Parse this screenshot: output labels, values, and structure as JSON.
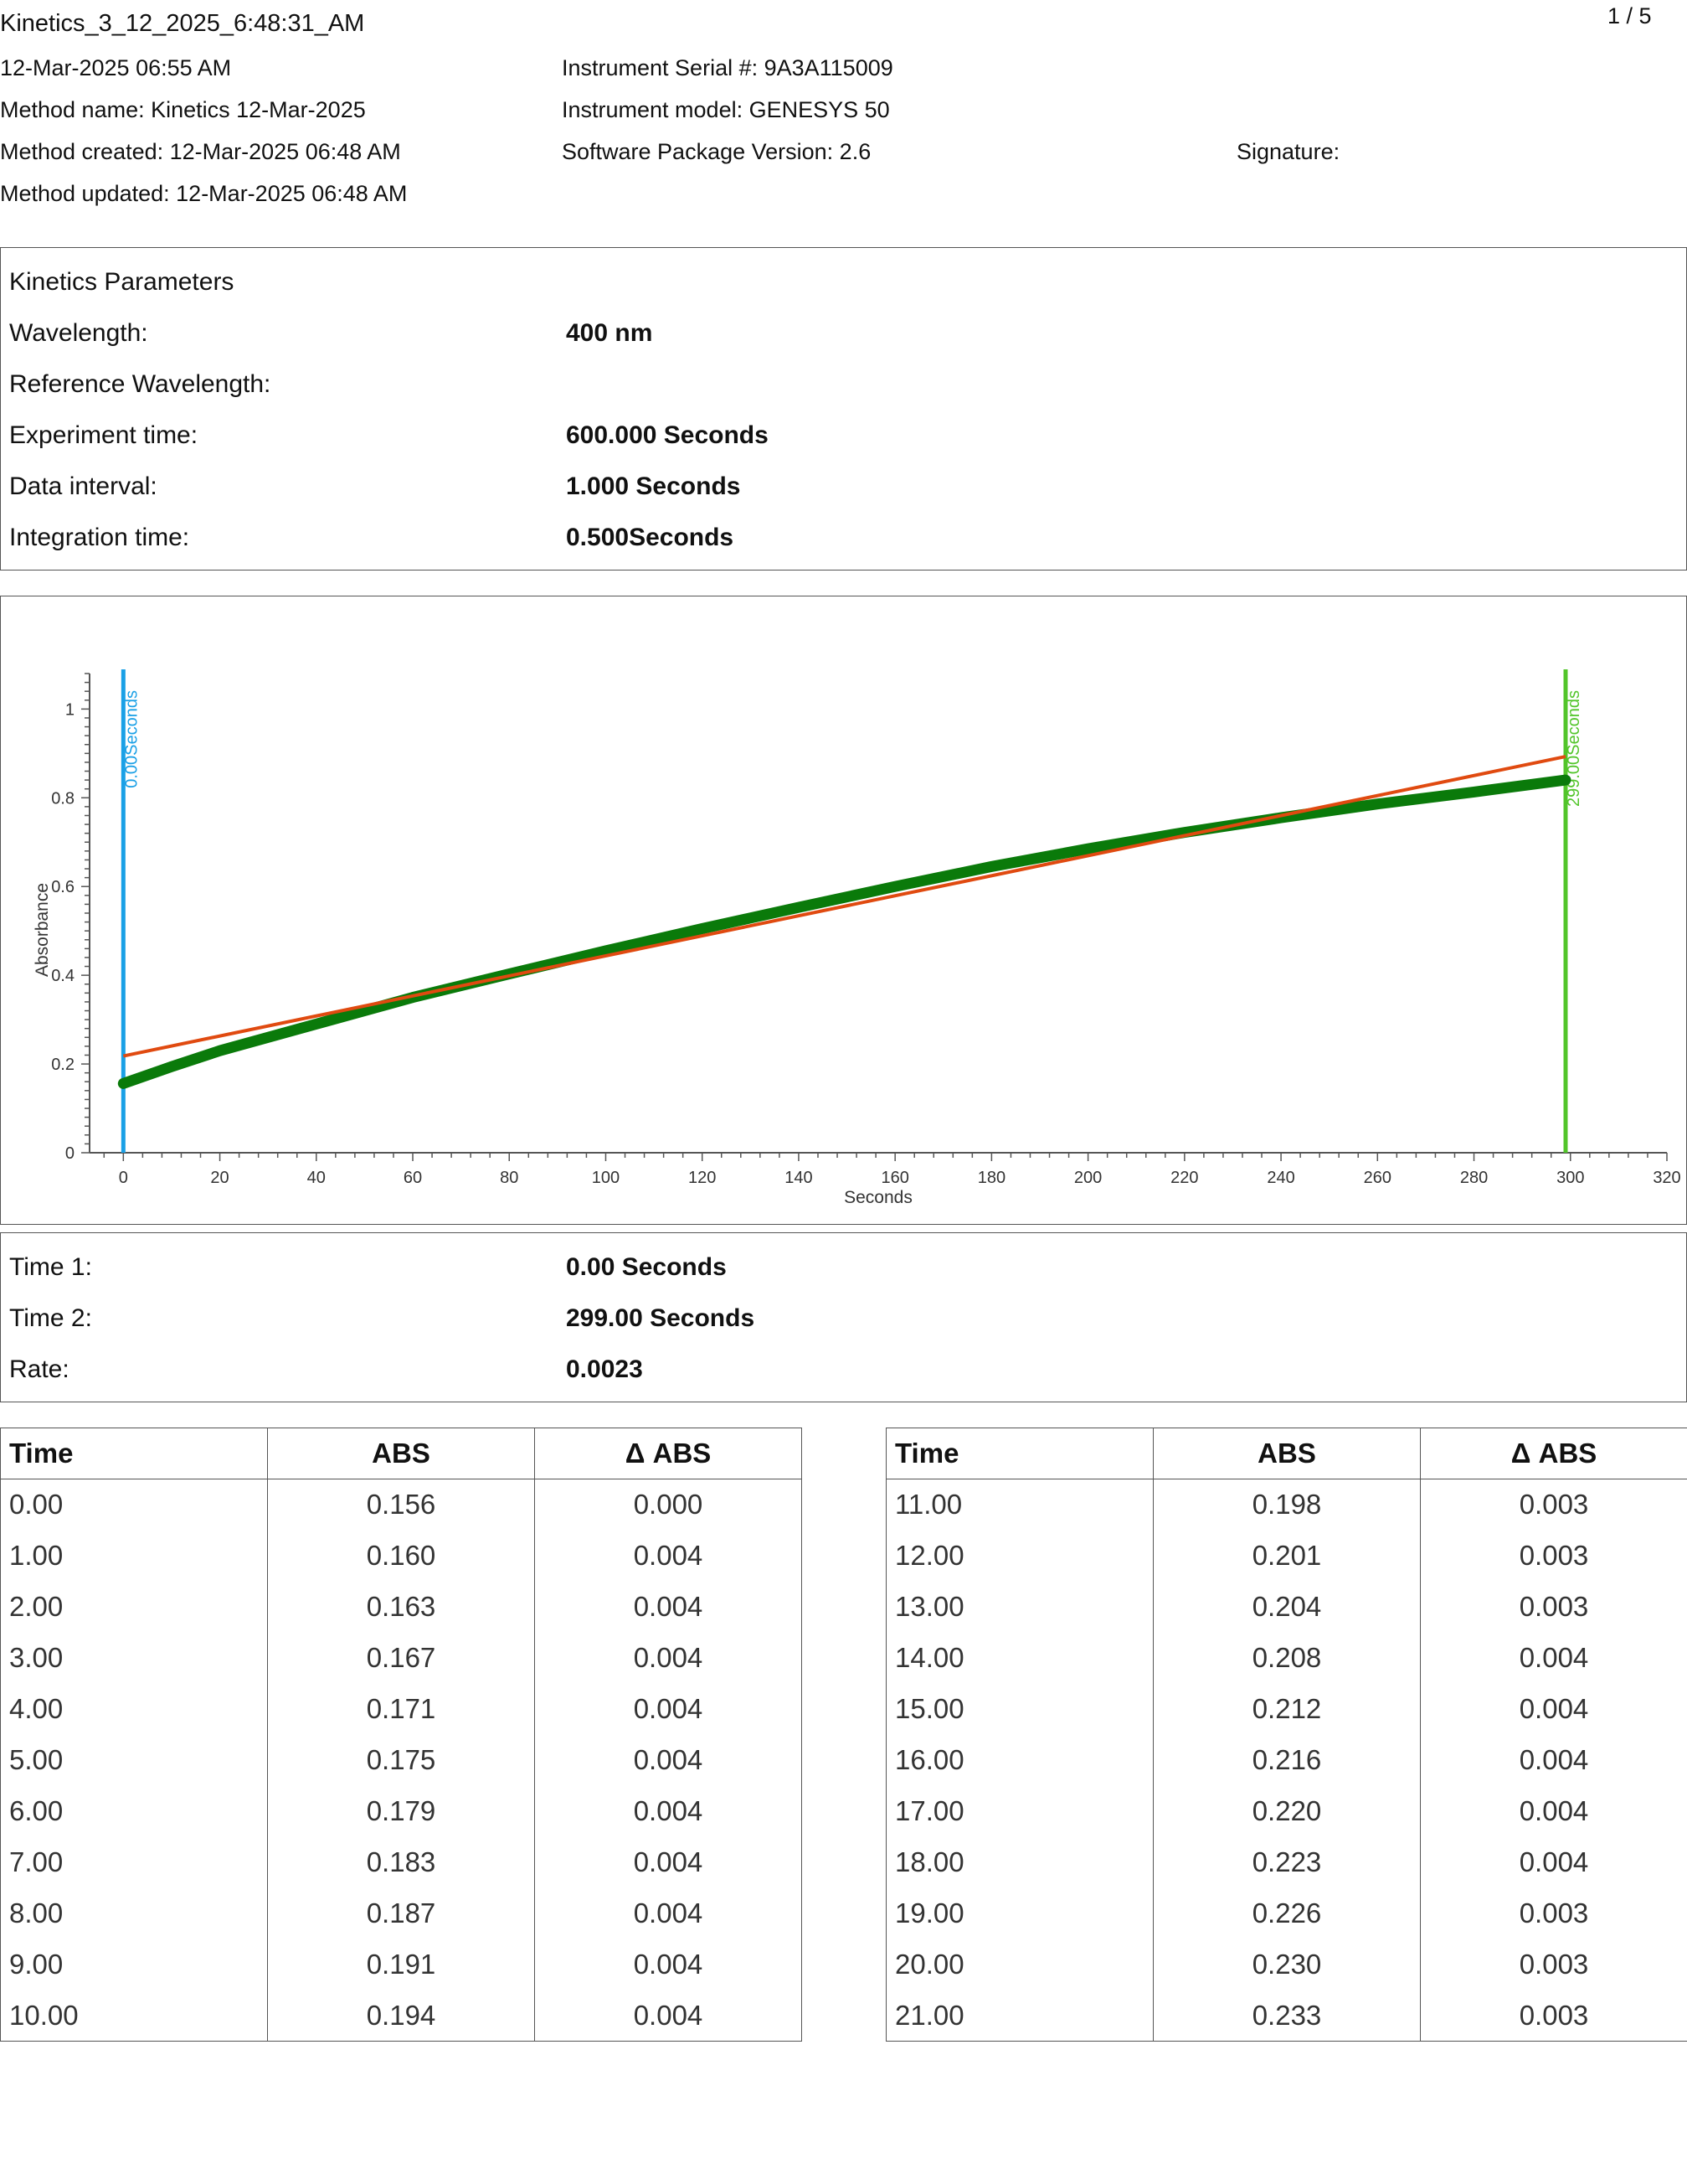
{
  "header": {
    "title": "Kinetics_3_12_2025_6:48:31_AM",
    "page": "1 / 5",
    "date": "12-Mar-2025 06:55 AM",
    "method_name": "Method name: Kinetics 12-Mar-2025",
    "method_created": "Method created: 12-Mar-2025 06:48 AM",
    "method_updated": "Method updated: 12-Mar-2025 06:48 AM",
    "serial": "Instrument Serial #: 9A3A115009",
    "model": "Instrument model: GENESYS 50",
    "software": "Software Package Version: 2.6",
    "signature": "Signature:"
  },
  "params": {
    "heading": "Kinetics Parameters",
    "rows": [
      {
        "label": "Wavelength:",
        "value": "400 nm"
      },
      {
        "label": "Reference Wavelength:",
        "value": ""
      },
      {
        "label": "Experiment time:",
        "value": "600.000 Seconds"
      },
      {
        "label": "Data interval:",
        "value": "1.000 Seconds"
      },
      {
        "label": "Integration time:",
        "value": "0.500Seconds"
      }
    ]
  },
  "chart_data": {
    "type": "scatter",
    "xlabel": "Seconds",
    "ylabel": "Absorbance",
    "xlim": [
      -7,
      320
    ],
    "ylim": [
      0,
      1.08
    ],
    "xticks": [
      0,
      20,
      40,
      60,
      80,
      100,
      120,
      140,
      160,
      180,
      200,
      220,
      240,
      260,
      280,
      300,
      320
    ],
    "yticks": [
      0,
      0.2,
      0.4,
      0.6,
      0.8,
      1
    ],
    "ytick_labels": [
      "0",
      "0.2",
      "0.4",
      "0.6",
      "0.8",
      "1"
    ],
    "series": [
      {
        "points": [
          [
            0,
            0.156
          ],
          [
            10,
            0.194
          ],
          [
            20,
            0.23
          ],
          [
            40,
            0.29
          ],
          [
            60,
            0.35
          ],
          [
            80,
            0.403
          ],
          [
            100,
            0.455
          ],
          [
            120,
            0.505
          ],
          [
            140,
            0.553
          ],
          [
            160,
            0.6
          ],
          [
            180,
            0.645
          ],
          [
            200,
            0.685
          ],
          [
            220,
            0.722
          ],
          [
            240,
            0.755
          ],
          [
            260,
            0.786
          ],
          [
            280,
            0.813
          ],
          [
            299,
            0.84
          ]
        ],
        "color": "#0a7a0a"
      }
    ],
    "fit_line": {
      "x": [
        0,
        299
      ],
      "y": [
        0.218,
        0.893
      ],
      "color": "#e04a10"
    },
    "markers": [
      {
        "x": 0,
        "label": "0.00Seconds",
        "color": "#1aa0e6"
      },
      {
        "x": 299,
        "label": "299.00Seconds",
        "color": "#52c52a"
      }
    ]
  },
  "results": {
    "rows": [
      {
        "label": "Time 1:",
        "value": "0.00 Seconds"
      },
      {
        "label": "Time 2:",
        "value": "299.00 Seconds"
      },
      {
        "label": "Rate:",
        "value": "0.0023"
      }
    ]
  },
  "table": {
    "headers": [
      "Time",
      "ABS",
      "Δ ABS"
    ],
    "left": [
      [
        "0.00",
        "0.156",
        "0.000"
      ],
      [
        "1.00",
        "0.160",
        "0.004"
      ],
      [
        "2.00",
        "0.163",
        "0.004"
      ],
      [
        "3.00",
        "0.167",
        "0.004"
      ],
      [
        "4.00",
        "0.171",
        "0.004"
      ],
      [
        "5.00",
        "0.175",
        "0.004"
      ],
      [
        "6.00",
        "0.179",
        "0.004"
      ],
      [
        "7.00",
        "0.183",
        "0.004"
      ],
      [
        "8.00",
        "0.187",
        "0.004"
      ],
      [
        "9.00",
        "0.191",
        "0.004"
      ],
      [
        "10.00",
        "0.194",
        "0.004"
      ]
    ],
    "right": [
      [
        "11.00",
        "0.198",
        "0.003"
      ],
      [
        "12.00",
        "0.201",
        "0.003"
      ],
      [
        "13.00",
        "0.204",
        "0.003"
      ],
      [
        "14.00",
        "0.208",
        "0.004"
      ],
      [
        "15.00",
        "0.212",
        "0.004"
      ],
      [
        "16.00",
        "0.216",
        "0.004"
      ],
      [
        "17.00",
        "0.220",
        "0.004"
      ],
      [
        "18.00",
        "0.223",
        "0.004"
      ],
      [
        "19.00",
        "0.226",
        "0.003"
      ],
      [
        "20.00",
        "0.230",
        "0.003"
      ],
      [
        "21.00",
        "0.233",
        "0.003"
      ]
    ]
  }
}
